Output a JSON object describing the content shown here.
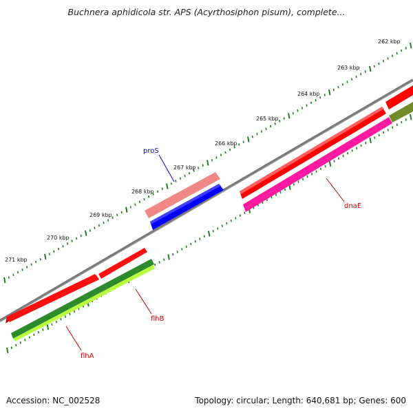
{
  "title": "Buchnera aphidicola str. APS (Acyrthosiphon pisum), complete...",
  "footer": {
    "accession": "Accession: NC_002528",
    "info": "Topology: circular; Length: 640,681 bp; Genes: 600"
  },
  "ticks": [
    "262 kbp",
    "263 kbp",
    "264 kbp",
    "265 kbp",
    "266 kbp",
    "267 kbp",
    "268 kbp",
    "269 kbp",
    "270 kbp",
    "271 kbp"
  ],
  "genes": [
    {
      "name": "proS",
      "color": "#0000cc"
    },
    {
      "name": "dnaE",
      "color": "#cc0000"
    },
    {
      "name": "flhB",
      "color": "#cc0000"
    },
    {
      "name": "flhA",
      "color": "#cc0000"
    }
  ],
  "colors": {
    "backbone": "#7a7a7a",
    "tick": "#1e7a1e",
    "forward_cds": "#ff0000",
    "forward_light": "#f08080",
    "reverse_blue": "#0000ff",
    "reverse_magenta": "#ff1aa0",
    "reverse_darkgreen": "#2d8a2d",
    "reverse_lime": "#b8ff40",
    "reverse_olive": "#6e8c2a"
  }
}
